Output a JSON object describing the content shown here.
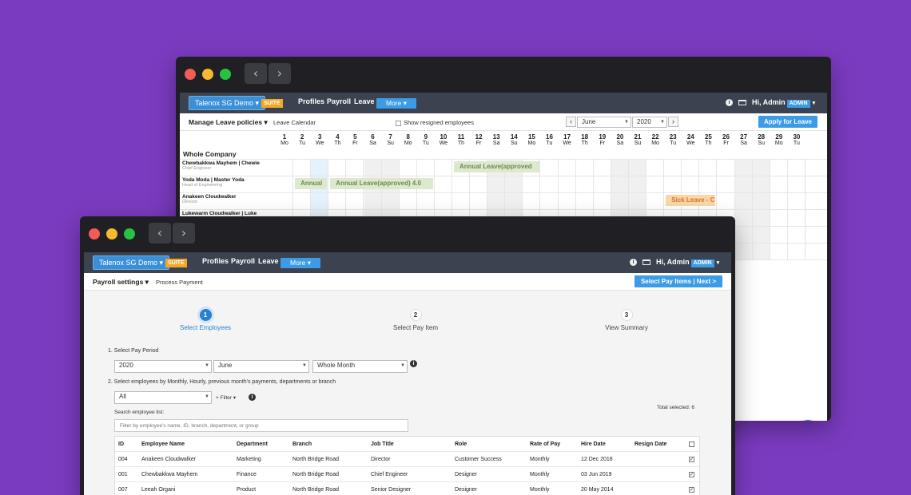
{
  "colors": {
    "background": "#7b3bc0",
    "accent": "#3b9be6",
    "suite": "#f5a623",
    "appbar": "#3b4350",
    "leave_green": "#dde9cf",
    "leave_orange": "#fbd6a9"
  },
  "nav": {
    "back": "‹",
    "forward": "›"
  },
  "appbar": {
    "brand": "Talenox SG Demo ▾",
    "suite": "SUITE",
    "profiles": "Profiles",
    "payroll": "Payroll",
    "leave": "Leave",
    "more": "More ▾",
    "greeting": "Hi, Admin",
    "admin_badge": "ADMIN",
    "info": "i"
  },
  "leave": {
    "title": "Manage Leave policies ▾",
    "crumb": "Leave Calendar",
    "show_resigned": "Show resigned employees",
    "prev": "‹",
    "next": "›",
    "month": "June",
    "year": "2020",
    "apply": "Apply for Leave",
    "group": "Whole Company",
    "days": [
      {
        "d": "1",
        "w": "Mo"
      },
      {
        "d": "2",
        "w": "Tu"
      },
      {
        "d": "3",
        "w": "We"
      },
      {
        "d": "4",
        "w": "Th"
      },
      {
        "d": "5",
        "w": "Fr"
      },
      {
        "d": "6",
        "w": "Sa"
      },
      {
        "d": "7",
        "w": "Su"
      },
      {
        "d": "8",
        "w": "Mo"
      },
      {
        "d": "9",
        "w": "Tu"
      },
      {
        "d": "10",
        "w": "We"
      },
      {
        "d": "11",
        "w": "Th"
      },
      {
        "d": "12",
        "w": "Fr"
      },
      {
        "d": "13",
        "w": "Sa"
      },
      {
        "d": "14",
        "w": "Su"
      },
      {
        "d": "15",
        "w": "Mo"
      },
      {
        "d": "16",
        "w": "Tu"
      },
      {
        "d": "17",
        "w": "We"
      },
      {
        "d": "18",
        "w": "Th"
      },
      {
        "d": "19",
        "w": "Fr"
      },
      {
        "d": "20",
        "w": "Sa"
      },
      {
        "d": "21",
        "w": "Su"
      },
      {
        "d": "22",
        "w": "Mo"
      },
      {
        "d": "23",
        "w": "Tu"
      },
      {
        "d": "24",
        "w": "We"
      },
      {
        "d": "25",
        "w": "Th"
      },
      {
        "d": "26",
        "w": "Fr"
      },
      {
        "d": "27",
        "w": "Sa"
      },
      {
        "d": "28",
        "w": "Su"
      },
      {
        "d": "29",
        "w": "Mo"
      },
      {
        "d": "30",
        "w": "Tu"
      }
    ],
    "employees": [
      {
        "name": "Chewbakkwa Mayhem | Chewie",
        "role": "Chief Engineer"
      },
      {
        "name": "Yoda Moda | Master Yoda",
        "role": "Head of Engineering"
      },
      {
        "name": "Anakeen Cloudwalker",
        "role": "Director"
      },
      {
        "name": "Lukewarm Cloudwalker | Luke",
        "role": ""
      }
    ],
    "bars": [
      {
        "label": "Annual Leave(approved",
        "type": "green",
        "row": 0,
        "start_day": 11,
        "days": 5
      },
      {
        "label": "Annual",
        "type": "green",
        "row": 1,
        "start_day": 2,
        "days": 2
      },
      {
        "label": "Annual Leave(approved) 4.0",
        "type": "green",
        "row": 1,
        "start_day": 4,
        "days": 6
      },
      {
        "label": "Sick Leave - C",
        "type": "orange",
        "row": 2,
        "start_day": 23,
        "days": 3
      }
    ]
  },
  "payroll": {
    "title": "Payroll settings ▾",
    "crumb": "Process Payment",
    "next_btn": "Select Pay Items | Next >",
    "steps": [
      {
        "num": "1",
        "label": "Select Employees"
      },
      {
        "num": "2",
        "label": "Select Pay Item"
      },
      {
        "num": "3",
        "label": "View Summary"
      }
    ],
    "q1": "1. Select Pay Period",
    "year": "2020",
    "month": "June",
    "period": "Whole Month",
    "q2": "2. Select employees by Monthly, Hourly, previous month's payments, departments or branch",
    "filter_all": "All",
    "filter_btn": "+ Filter ▾",
    "search_label": "Search employee list:",
    "search_placeholder": "Filter by employee's name, ID, branch, department, or group",
    "total": "Total selected: 6",
    "headers": [
      "ID",
      "Employee Name",
      "Department",
      "Branch",
      "Job Title",
      "Role",
      "Rate of Pay",
      "Hire Date",
      "Resign Date"
    ],
    "rows": [
      [
        "004",
        "Anakeen Cloudwalker",
        "Marketing",
        "North Bridge Road",
        "Director",
        "Customer Success",
        "Monthly",
        "12 Dec 2018",
        ""
      ],
      [
        "001",
        "Chewbakkwa Mayhem",
        "Finance",
        "North Bridge Road",
        "Chief Engineer",
        "Designer",
        "Monthly",
        "03 Jun 2019",
        ""
      ],
      [
        "007",
        "Leeah Organi",
        "Product",
        "North Bridge Road",
        "Senior Designer",
        "Designer",
        "Monthly",
        "20 May 2014",
        ""
      ]
    ]
  }
}
